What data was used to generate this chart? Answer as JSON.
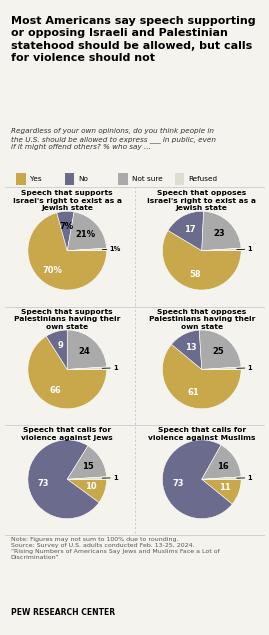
{
  "title": "Most Americans say speech supporting\nor opposing Israeli and Palestinian\nstatehood should be allowed, but calls\nfor violence should not",
  "subtitle": "Regardless of your own opinions, do you think people in\nthe U.S. should be allowed to express ___ in public, even\nif it might offend others? % who say ...",
  "legend": [
    "Yes",
    "No",
    "Not sure",
    "Refused"
  ],
  "colors": [
    "#C9A84C",
    "#6B6B8E",
    "#AAAAAA",
    "#DDDDD0"
  ],
  "charts": [
    {
      "title": "Speech that supports\nIsrael's right to exist as a\nJewish state",
      "values": [
        70,
        7,
        21,
        1
      ],
      "labels": [
        "70%",
        "7%",
        "21%",
        "1%"
      ]
    },
    {
      "title": "Speech that opposes\nIsrael's right to exist as a\nJewish state",
      "values": [
        58,
        17,
        23,
        1
      ],
      "labels": [
        "58",
        "17",
        "23",
        "1"
      ]
    },
    {
      "title": "Speech that supports\nPalestinians having their\nown state",
      "values": [
        66,
        9,
        24,
        1
      ],
      "labels": [
        "66",
        "9",
        "24",
        "1"
      ]
    },
    {
      "title": "Speech that opposes\nPalestinians having their\nown state",
      "values": [
        61,
        13,
        25,
        1
      ],
      "labels": [
        "61",
        "13",
        "25",
        "1"
      ]
    },
    {
      "title": "Speech that calls for\nviolence against Jews",
      "values": [
        10,
        73,
        15,
        1
      ],
      "labels": [
        "10",
        "73",
        "15",
        "1"
      ]
    },
    {
      "title": "Speech that calls for\nviolence against Muslims",
      "values": [
        11,
        73,
        16,
        1
      ],
      "labels": [
        "11",
        "73",
        "16",
        "1"
      ]
    }
  ],
  "note": "Note: Figures may not sum to 100% due to rounding.\nSource: Survey of U.S. adults conducted Feb. 13-25, 2024.\n“Rising Numbers of Americans Say Jews and Muslims Face a Lot of\nDiscrimination”",
  "credit": "PEW RESEARCH CENTER",
  "bg_color": "#F5F3EE",
  "divider_color": "#CCCCCC",
  "label_color_inside_dark": "white",
  "label_color_inside_light": "black"
}
